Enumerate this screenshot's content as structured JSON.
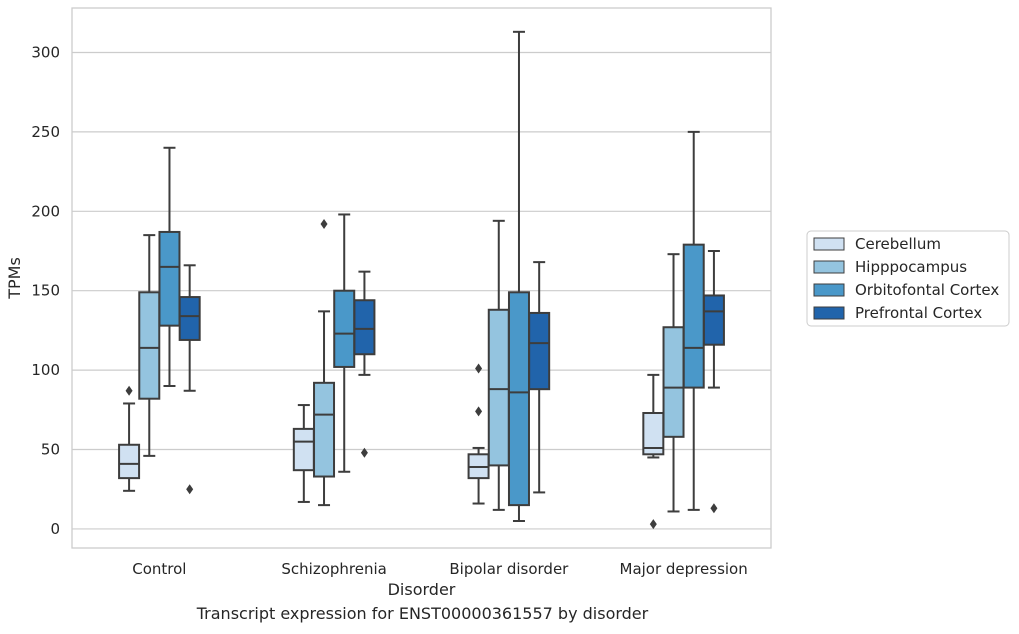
{
  "caption": "Transcript expression for ENST00000361557 by disorder",
  "chart_data": {
    "type": "box",
    "title": "",
    "xlabel": "Disorder",
    "ylabel": "TPMs",
    "ylim": [
      -12,
      328
    ],
    "yticks": [
      0,
      50,
      100,
      150,
      200,
      250,
      300
    ],
    "grid": "horizontal",
    "legend_position": "right",
    "categories": [
      "Control",
      "Schizophrenia",
      "Bipolar disorder",
      "Major depression"
    ],
    "series": [
      {
        "name": "Cerebellum",
        "color": "#d0e1f2",
        "boxes": [
          {
            "whisker_low": 24,
            "q1": 32,
            "median": 41,
            "q3": 53,
            "whisker_high": 79,
            "outliers": [
              87
            ]
          },
          {
            "whisker_low": 17,
            "q1": 37,
            "median": 55,
            "q3": 63,
            "whisker_high": 78,
            "outliers": []
          },
          {
            "whisker_low": 16,
            "q1": 32,
            "median": 39,
            "q3": 47,
            "whisker_high": 51,
            "outliers": [
              101,
              74
            ]
          },
          {
            "whisker_low": 45,
            "q1": 47,
            "median": 51,
            "q3": 73,
            "whisker_high": 97,
            "outliers": [
              3
            ]
          }
        ]
      },
      {
        "name": "Hipppocampus",
        "color": "#94c4df",
        "boxes": [
          {
            "whisker_low": 46,
            "q1": 82,
            "median": 114,
            "q3": 149,
            "whisker_high": 185,
            "outliers": []
          },
          {
            "whisker_low": 15,
            "q1": 33,
            "median": 72,
            "q3": 92,
            "whisker_high": 137,
            "outliers": [
              192
            ]
          },
          {
            "whisker_low": 12,
            "q1": 40,
            "median": 88,
            "q3": 138,
            "whisker_high": 194,
            "outliers": []
          },
          {
            "whisker_low": 11,
            "q1": 58,
            "median": 89,
            "q3": 127,
            "whisker_high": 173,
            "outliers": []
          }
        ]
      },
      {
        "name": "Orbitofontal Cortex",
        "color": "#4a98c9",
        "boxes": [
          {
            "whisker_low": 90,
            "q1": 128,
            "median": 165,
            "q3": 187,
            "whisker_high": 240,
            "outliers": []
          },
          {
            "whisker_low": 36,
            "q1": 102,
            "median": 123,
            "q3": 150,
            "whisker_high": 198,
            "outliers": []
          },
          {
            "whisker_low": 5,
            "q1": 15,
            "median": 86,
            "q3": 149,
            "whisker_high": 313,
            "outliers": []
          },
          {
            "whisker_low": 12,
            "q1": 89,
            "median": 114,
            "q3": 179,
            "whisker_high": 250,
            "outliers": []
          }
        ]
      },
      {
        "name": "Prefrontal Cortex",
        "color": "#2164ab",
        "boxes": [
          {
            "whisker_low": 87,
            "q1": 119,
            "median": 134,
            "q3": 146,
            "whisker_high": 166,
            "outliers": [
              25
            ]
          },
          {
            "whisker_low": 97,
            "q1": 110,
            "median": 126,
            "q3": 144,
            "whisker_high": 162,
            "outliers": [
              48
            ]
          },
          {
            "whisker_low": 23,
            "q1": 88,
            "median": 117,
            "q3": 136,
            "whisker_high": 168,
            "outliers": []
          },
          {
            "whisker_low": 89,
            "q1": 116,
            "median": 137,
            "q3": 147,
            "whisker_high": 175,
            "outliers": [
              13
            ]
          }
        ]
      }
    ]
  }
}
